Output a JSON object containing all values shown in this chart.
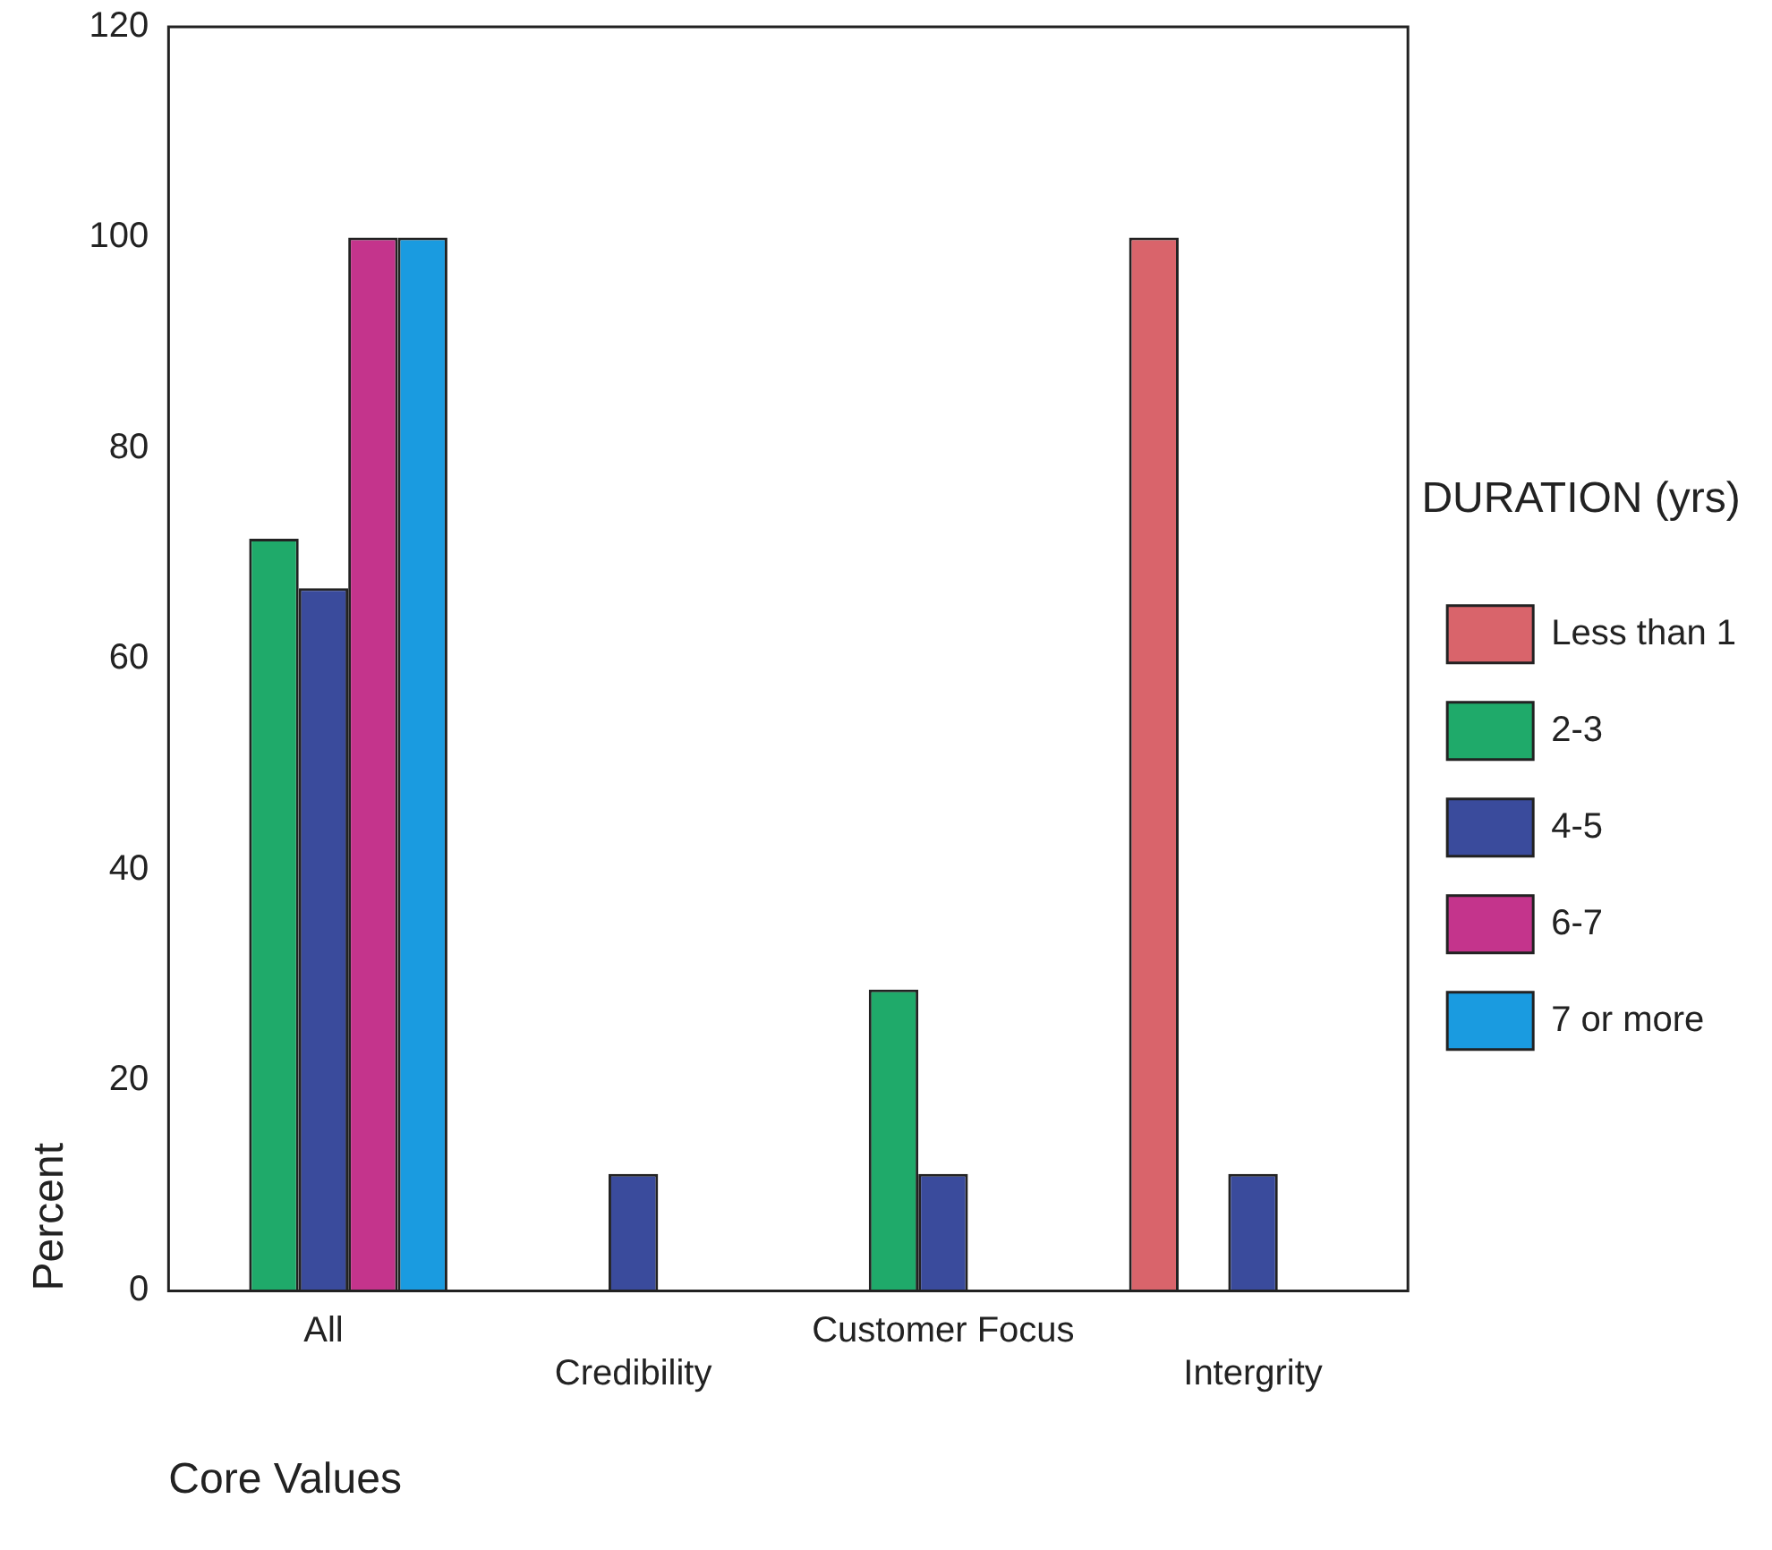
{
  "chart_data": {
    "type": "bar",
    "xlabel": "Core Values",
    "ylabel": "Percent",
    "legend_title": "DURATION (yrs)",
    "categories": [
      "All",
      "Credibility",
      "Customer Focus",
      "Intergrity"
    ],
    "series": [
      {
        "name": "Less than 1",
        "color": "#d9646b",
        "values": [
          null,
          null,
          null,
          100
        ]
      },
      {
        "name": "2-3",
        "color": "#1faa6a",
        "values": [
          71.4,
          null,
          28.6,
          null
        ]
      },
      {
        "name": "4-5",
        "color": "#3a4b9c",
        "values": [
          66.7,
          11.1,
          11.1,
          11.1
        ]
      },
      {
        "name": "6-7",
        "color": "#c4348c",
        "values": [
          100,
          null,
          null,
          null
        ]
      },
      {
        "name": "7 or more",
        "color": "#1a9be0",
        "values": [
          100,
          null,
          null,
          null
        ]
      }
    ],
    "ylim": [
      0,
      120
    ],
    "yticks": [
      0,
      20,
      40,
      60,
      80,
      100,
      120
    ],
    "grid": false,
    "legend": "right"
  }
}
